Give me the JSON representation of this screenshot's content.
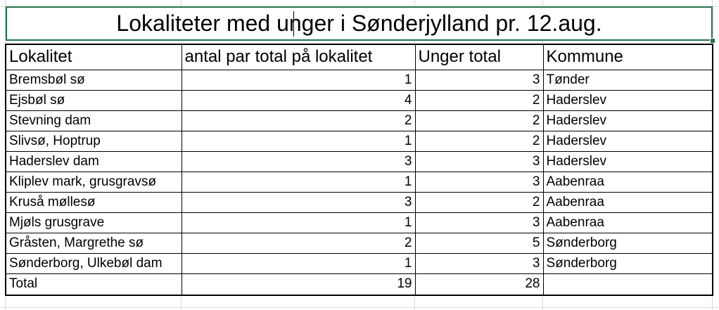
{
  "sheet": {
    "title": "Lokaliteter med unger i Sønderjylland pr. 12.aug.",
    "headers": [
      "Lokalitet",
      "antal par total på lokalitet",
      "Unger total",
      "Kommune"
    ],
    "rows": [
      {
        "lokalitet": "Bremsbøl sø",
        "par": "1",
        "unger": "3",
        "kommune": "Tønder"
      },
      {
        "lokalitet": "Ejsbøl sø",
        "par": "4",
        "unger": "2",
        "kommune": "Haderslev"
      },
      {
        "lokalitet": "Stevning dam",
        "par": "2",
        "unger": "2",
        "kommune": "Haderslev"
      },
      {
        "lokalitet": "Slivsø, Hoptrup",
        "par": "1",
        "unger": "2",
        "kommune": "Haderslev"
      },
      {
        "lokalitet": "Haderslev dam",
        "par": "3",
        "unger": "3",
        "kommune": "Haderslev"
      },
      {
        "lokalitet": "Kliplev mark, grusgravsø",
        "par": "1",
        "unger": "3",
        "kommune": "Aabenraa"
      },
      {
        "lokalitet": "Kruså møllesø",
        "par": "3",
        "unger": "2",
        "kommune": "Aabenraa"
      },
      {
        "lokalitet": "Mjøls grusgrave",
        "par": "1",
        "unger": "3",
        "kommune": "Aabenraa"
      },
      {
        "lokalitet": "Gråsten, Margrethe sø",
        "par": "2",
        "unger": "5",
        "kommune": "Sønderborg"
      },
      {
        "lokalitet": "Sønderborg, Ulkebøl dam",
        "par": "1",
        "unger": "3",
        "kommune": "Sønderborg"
      }
    ],
    "total": {
      "label": "Total",
      "par": "19",
      "unger": "28",
      "kommune": ""
    }
  }
}
